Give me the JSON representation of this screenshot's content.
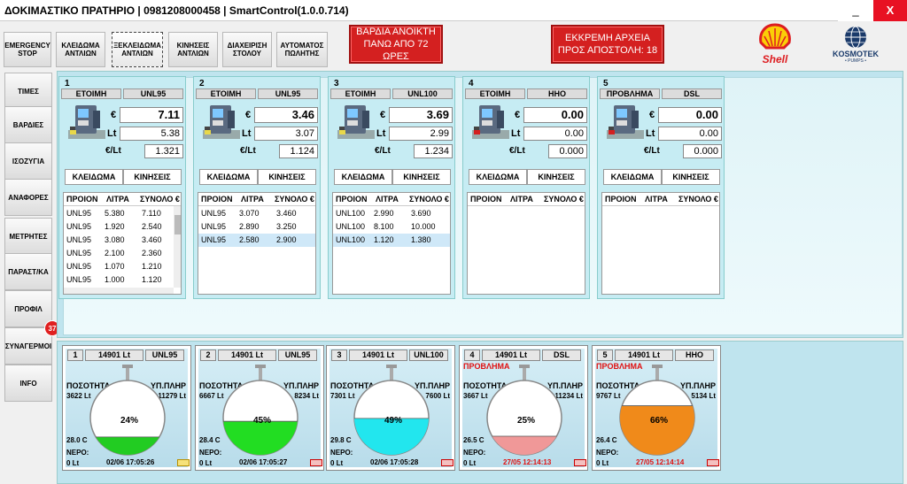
{
  "window": {
    "title": "ΔΟΚΙΜΑΣΤΙΚΟ ΠΡΑΤΗΡΙΟ | 0981208000458 | SmartControl(1.0.0.714)",
    "minimize": "_",
    "close": "X"
  },
  "toolbar": {
    "emergency": "EMERGENCY STOP",
    "lock_pumps": "ΚΛΕΙΔΩΜΑ ΑΝΤΛΙΩΝ",
    "unlock_pumps": "ΞΕΚΛΕΙΔΩΜΑ ΑΝΤΛΙΩΝ",
    "pump_moves": "ΚΙΝΗΣΕΙΣ ΑΝΤΛΙΩΝ",
    "fleet": "ΔΙΑΧΕΙΡΙΣΗ ΣΤΟΛΟΥ",
    "auto_seller": "ΑΥΤΟΜΑΤΟΣ ΠΩΛΗΤΗΣ",
    "shift_alert": "ΒΑΡΔΙΑ ΑΝΟΙΚΤΗ ΠΑΝΩ ΑΠΟ 72 ΩΡΕΣ",
    "pending_files": "ΕΚΚΡΕΜΗ ΑΡΧΕΙΑ ΠΡΟΣ ΑΠΟΣΤΟΛΗ: 18"
  },
  "logos": {
    "shell": "Shell",
    "kosmotek": "KOSMOTEK",
    "kosmotek_sub": "• PUMPS •"
  },
  "sidebar": {
    "items": [
      "ΤΙΜΕΣ",
      "ΒΑΡΔΙΕΣ",
      "ΙΣΟΖΥΓΙΑ",
      "ΑΝΑΦΟΡΕΣ",
      "ΜΕΤΡΗΤΕΣ",
      "ΠΑΡΑΣΤ/ΚΑ",
      "ΠΡΟΦΙΛ",
      "ΣΥΝΑΓΕΡΜΟΙ",
      "INFO"
    ],
    "alarm_badge": "37"
  },
  "labels": {
    "euro": "€",
    "lt": "Lt",
    "per_lt": "€/Lt",
    "lock": "ΚΛΕΙΔΩΜΑ",
    "moves": "ΚΙΝΗΣΕΙΣ",
    "col_product": "ΠΡΟΙΟΝ",
    "col_liters": "ΛΙΤΡΑ",
    "col_total": "ΣΥΝΟΛΟ €",
    "col_total_cut": "ΣΥΝΟΛΟ €",
    "quantity": "ΠΟΣΟΤΗΤΑ",
    "remaining": "ΥΠ.ΠΛΗΡ",
    "water": "ΝΕΡΟ:"
  },
  "pumps": [
    {
      "num": "1",
      "status": "ΕΤΟΙΜΗ",
      "fuel": "UNL95",
      "amount": "7.11",
      "liters": "5.38",
      "price": "1.321",
      "flag": "#e8d84a",
      "rows": [
        [
          "UNL95",
          "5.380",
          "7.110"
        ],
        [
          "UNL95",
          "1.920",
          "2.540"
        ],
        [
          "UNL95",
          "3.080",
          "3.460"
        ],
        [
          "UNL95",
          "2.100",
          "2.360"
        ],
        [
          "UNL95",
          "1.070",
          "1.210"
        ],
        [
          "UNL95",
          "1.000",
          "1.120"
        ]
      ],
      "selected": -1
    },
    {
      "num": "2",
      "status": "ΕΤΟΙΜΗ",
      "fuel": "UNL95",
      "amount": "3.46",
      "liters": "3.07",
      "price": "1.124",
      "flag": "#e8d84a",
      "rows": [
        [
          "UNL95",
          "3.070",
          "3.460"
        ],
        [
          "UNL95",
          "2.890",
          "3.250"
        ],
        [
          "UNL95",
          "2.580",
          "2.900"
        ]
      ],
      "selected": 2
    },
    {
      "num": "3",
      "status": "ΕΤΟΙΜΗ",
      "fuel": "UNL100",
      "amount": "3.69",
      "liters": "2.99",
      "price": "1.234",
      "flag": "#e8d84a",
      "rows": [
        [
          "UNL100",
          "2.990",
          "3.690"
        ],
        [
          "UNL100",
          "8.100",
          "10.000"
        ],
        [
          "UNL100",
          "1.120",
          "1.380"
        ]
      ],
      "selected": 2
    },
    {
      "num": "4",
      "status": "ΕΤΟΙΜΗ",
      "fuel": "HHO",
      "amount": "0.00",
      "liters": "0.00",
      "price": "0.000",
      "flag": "#d42020",
      "rows": [],
      "selected": -1
    },
    {
      "num": "5",
      "status": "ΠΡΟΒΛΗΜΑ",
      "fuel": "DSL",
      "amount": "0.00",
      "liters": "0.00",
      "price": "0.000",
      "flag": "#d42020",
      "rows": [],
      "selected": -1
    }
  ],
  "tanks": [
    {
      "num": "1",
      "capacity": "14901 Lt",
      "fuel": "UNL95",
      "problem": "",
      "qty": "3622 Lt",
      "remaining": "11279 Lt",
      "pct": "24%",
      "fill": 0.24,
      "color": "#22cc22",
      "temp": "28.0 C",
      "water": "0 Lt",
      "date": "02/06 17:05:26",
      "alarm": false
    },
    {
      "num": "2",
      "capacity": "14901 Lt",
      "fuel": "UNL95",
      "problem": "",
      "qty": "6667 Lt",
      "remaining": "8234 Lt",
      "pct": "45%",
      "fill": 0.45,
      "color": "#22dd22",
      "temp": "28.4 C",
      "water": "0 Lt",
      "date": "02/06 17:05:27",
      "alarm": true
    },
    {
      "num": "3",
      "capacity": "14901 Lt",
      "fuel": "UNL100",
      "problem": "",
      "qty": "7301 Lt",
      "remaining": "7600 Lt",
      "pct": "49%",
      "fill": 0.49,
      "color": "#22e6ee",
      "temp": "29.8 C",
      "water": "0 Lt",
      "date": "02/06 17:05:28",
      "alarm": true
    },
    {
      "num": "4",
      "capacity": "14901 Lt",
      "fuel": "DSL",
      "problem": "ΠΡΟΒΛΗΜΑ",
      "qty": "3667 Lt",
      "remaining": "11234 Lt",
      "pct": "25%",
      "fill": 0.25,
      "color": "#f09898",
      "temp": "26.5 C",
      "water": "0 Lt",
      "date": "27/05 12:14:13",
      "alarm": true
    },
    {
      "num": "5",
      "capacity": "14901 Lt",
      "fuel": "HHO",
      "problem": "ΠΡΟΒΛΗΜΑ",
      "qty": "9767 Lt",
      "remaining": "5134 Lt",
      "pct": "66%",
      "fill": 0.66,
      "color": "#f08a1a",
      "temp": "26.4 C",
      "water": "0 Lt",
      "date": "27/05 12:14:14",
      "alarm": true
    }
  ]
}
